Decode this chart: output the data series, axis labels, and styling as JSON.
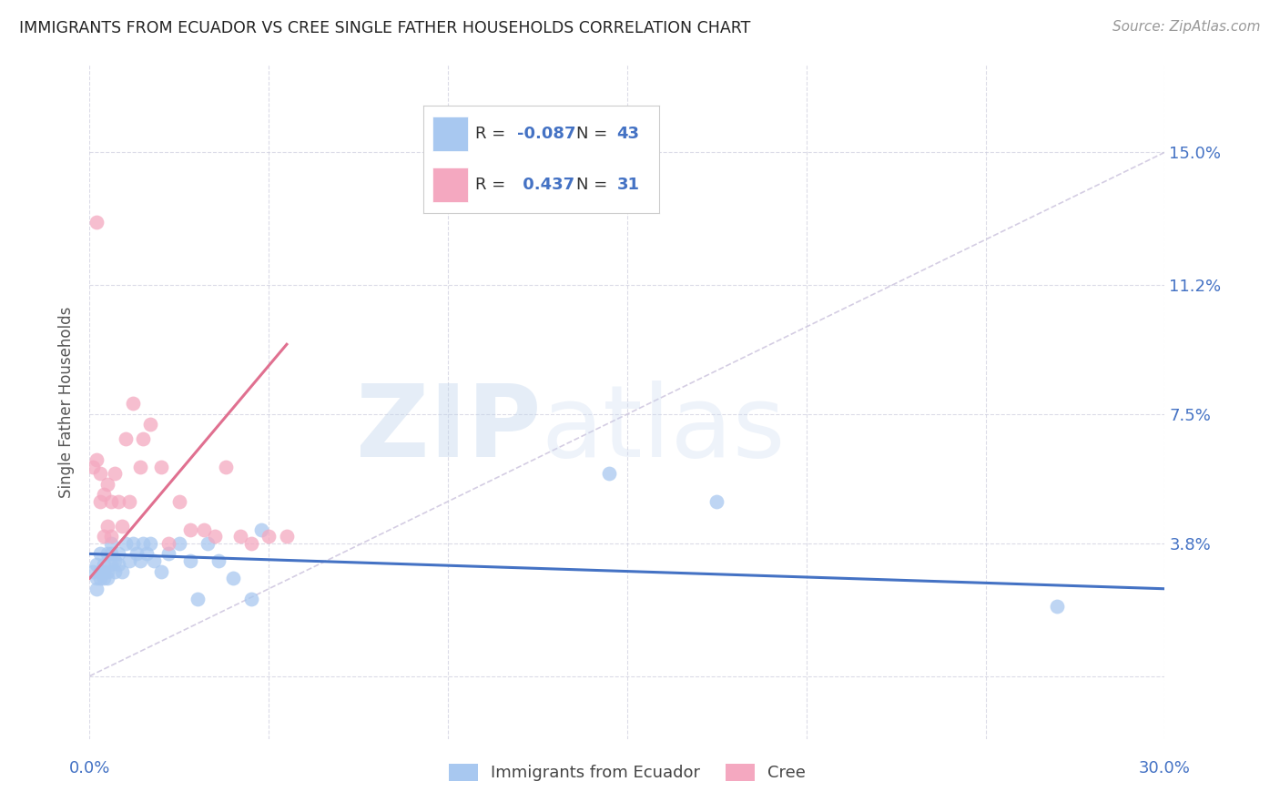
{
  "title": "IMMIGRANTS FROM ECUADOR VS CREE SINGLE FATHER HOUSEHOLDS CORRELATION CHART",
  "source": "Source: ZipAtlas.com",
  "ylabel": "Single Father Households",
  "xlim": [
    0.0,
    0.3
  ],
  "ylim": [
    -0.018,
    0.175
  ],
  "yticks": [
    0.0,
    0.038,
    0.075,
    0.112,
    0.15
  ],
  "ytick_labels": [
    "",
    "3.8%",
    "7.5%",
    "11.2%",
    "15.0%"
  ],
  "xticks": [
    0.0,
    0.05,
    0.1,
    0.15,
    0.2,
    0.25,
    0.3
  ],
  "xtick_labels": [
    "0.0%",
    "",
    "",
    "",
    "",
    "",
    "30.0%"
  ],
  "watermark_zip": "ZIP",
  "watermark_atlas": "atlas",
  "blue_color": "#A8C8F0",
  "pink_color": "#F4A8C0",
  "blue_line_color": "#4472C4",
  "pink_line_color": "#E07090",
  "diag_line_color": "#D0C8E0",
  "blue_scatter_x": [
    0.001,
    0.002,
    0.002,
    0.002,
    0.003,
    0.003,
    0.003,
    0.004,
    0.004,
    0.004,
    0.005,
    0.005,
    0.005,
    0.006,
    0.006,
    0.006,
    0.007,
    0.007,
    0.008,
    0.008,
    0.009,
    0.01,
    0.011,
    0.012,
    0.013,
    0.014,
    0.015,
    0.016,
    0.017,
    0.018,
    0.02,
    0.022,
    0.025,
    0.028,
    0.03,
    0.033,
    0.036,
    0.04,
    0.045,
    0.048,
    0.145,
    0.175,
    0.27
  ],
  "blue_scatter_y": [
    0.03,
    0.028,
    0.032,
    0.025,
    0.03,
    0.035,
    0.028,
    0.032,
    0.03,
    0.028,
    0.035,
    0.03,
    0.028,
    0.035,
    0.032,
    0.038,
    0.033,
    0.03,
    0.035,
    0.032,
    0.03,
    0.038,
    0.033,
    0.038,
    0.035,
    0.033,
    0.038,
    0.035,
    0.038,
    0.033,
    0.03,
    0.035,
    0.038,
    0.033,
    0.022,
    0.038,
    0.033,
    0.028,
    0.022,
    0.042,
    0.058,
    0.05,
    0.02
  ],
  "pink_scatter_x": [
    0.001,
    0.002,
    0.002,
    0.003,
    0.003,
    0.004,
    0.004,
    0.005,
    0.005,
    0.006,
    0.006,
    0.007,
    0.008,
    0.009,
    0.01,
    0.011,
    0.012,
    0.014,
    0.015,
    0.017,
    0.02,
    0.022,
    0.025,
    0.028,
    0.032,
    0.035,
    0.038,
    0.042,
    0.045,
    0.05,
    0.055
  ],
  "pink_scatter_y": [
    0.06,
    0.062,
    0.13,
    0.05,
    0.058,
    0.04,
    0.052,
    0.043,
    0.055,
    0.04,
    0.05,
    0.058,
    0.05,
    0.043,
    0.068,
    0.05,
    0.078,
    0.06,
    0.068,
    0.072,
    0.06,
    0.038,
    0.05,
    0.042,
    0.042,
    0.04,
    0.06,
    0.04,
    0.038,
    0.04,
    0.04
  ],
  "blue_trend_x": [
    0.0,
    0.3
  ],
  "blue_trend_y": [
    0.035,
    0.025
  ],
  "pink_trend_x": [
    0.0,
    0.055
  ],
  "pink_trend_y": [
    0.028,
    0.095
  ]
}
